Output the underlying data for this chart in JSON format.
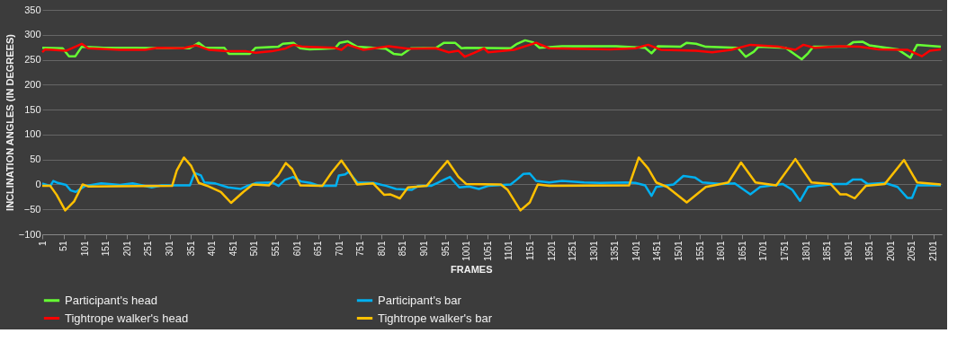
{
  "chart_data": {
    "type": "line",
    "xlabel": "FRAMES",
    "ylabel": "INCLINATION ANGLES (IN DEGREES)",
    "xlim": [
      1,
      2121
    ],
    "xticks": [
      1,
      51,
      101,
      151,
      201,
      251,
      301,
      351,
      401,
      451,
      501,
      551,
      601,
      651,
      701,
      751,
      801,
      851,
      901,
      951,
      1001,
      1051,
      1101,
      1151,
      1201,
      1251,
      1301,
      1351,
      1401,
      1451,
      1501,
      1551,
      1601,
      1651,
      1701,
      1751,
      1801,
      1851,
      1901,
      1951,
      2001,
      2051,
      2101
    ],
    "ylim": [
      -100,
      350
    ],
    "yticks": [
      -100,
      -50,
      0,
      50,
      100,
      150,
      200,
      250,
      300,
      350
    ],
    "grid": "y",
    "legend": "bottom",
    "series": [
      {
        "name": "Participant's head",
        "color": "#66ff33",
        "x": [
          1,
          49,
          64,
          79,
          94,
          146,
          221,
          288,
          348,
          370,
          385,
          430,
          441,
          490,
          504,
          557,
          568,
          593,
          609,
          631,
          691,
          702,
          721,
          743,
          811,
          829,
          848,
          870,
          929,
          948,
          974,
          989,
          1000,
          1105,
          1120,
          1139,
          1158,
          1173,
          1226,
          1354,
          1422,
          1437,
          1452,
          1505,
          1520,
          1542,
          1565,
          1640,
          1659,
          1678,
          1689,
          1753,
          1776,
          1791,
          1806,
          1818,
          1897,
          1912,
          1935,
          1950,
          2017,
          2047,
          2063,
          2119
        ],
        "values": [
          274,
          273,
          257,
          257,
          276,
          274,
          274,
          273,
          273,
          284,
          274,
          274,
          262,
          262,
          274,
          276,
          282,
          284,
          273,
          271,
          273,
          284,
          287,
          276,
          272,
          262,
          260,
          273,
          274,
          284,
          284,
          273,
          274,
          273,
          282,
          289,
          285,
          274,
          277,
          277,
          274,
          263,
          277,
          276,
          284,
          282,
          276,
          274,
          256,
          266,
          276,
          274,
          260,
          251,
          263,
          276,
          276,
          285,
          286,
          279,
          271,
          254,
          280,
          276
        ]
      },
      {
        "name": "Participant's bar",
        "color": "#00b0f0",
        "x": [
          1,
          20,
          27,
          38,
          57,
          68,
          80,
          102,
          140,
          184,
          214,
          259,
          282,
          349,
          360,
          375,
          383,
          409,
          439,
          469,
          484,
          506,
          543,
          558,
          573,
          592,
          611,
          633,
          655,
          693,
          700,
          715,
          723,
          744,
          782,
          812,
          835,
          872,
          887,
          917,
          932,
          947,
          962,
          984,
          1007,
          1030,
          1052,
          1105,
          1120,
          1135,
          1150,
          1165,
          1196,
          1226,
          1278,
          1316,
          1376,
          1399,
          1422,
          1437,
          1448,
          1489,
          1512,
          1539,
          1557,
          1603,
          1633,
          1655,
          1670,
          1693,
          1746,
          1769,
          1787,
          1806,
          1867,
          1897,
          1912,
          1931,
          1946,
          1987,
          2017,
          2040,
          2051,
          2063,
          2119
        ],
        "values": [
          2,
          -3,
          7,
          3,
          -1,
          -12,
          -15,
          -3,
          2,
          -1,
          2,
          -6,
          -2,
          -2,
          23,
          18,
          4,
          2,
          -6,
          -9,
          -3,
          3,
          4,
          -3,
          9,
          15,
          6,
          3,
          -3,
          -3,
          18,
          20,
          25,
          4,
          3,
          -3,
          -9,
          -11,
          -3,
          -3,
          3,
          9,
          15,
          -6,
          -4,
          -9,
          -3,
          0,
          10,
          21,
          22,
          7,
          4,
          7,
          4,
          3,
          4,
          3,
          -2,
          -23,
          -5,
          0,
          17,
          14,
          4,
          1,
          2,
          -11,
          -20,
          -5,
          1,
          -11,
          -33,
          -5,
          1,
          1,
          10,
          10,
          1,
          3,
          -5,
          -27,
          -27,
          -2,
          -2
        ]
      },
      {
        "name": "Tightrope walker's head",
        "color": "#ff0000",
        "x": [
          1,
          8,
          57,
          94,
          109,
          184,
          243,
          273,
          333,
          363,
          393,
          437,
          482,
          504,
          542,
          572,
          593,
          616,
          691,
          706,
          721,
          758,
          818,
          863,
          929,
          959,
          982,
          997,
          1019,
          1042,
          1052,
          1113,
          1165,
          1196,
          1339,
          1399,
          1429,
          1459,
          1542,
          1580,
          1625,
          1670,
          1738,
          1776,
          1795,
          1821,
          1882,
          1927,
          1972,
          2025,
          2040,
          2074,
          2093,
          2119
        ],
        "values": [
          265,
          271,
          268,
          282,
          273,
          270,
          270,
          274,
          273,
          279,
          270,
          267,
          267,
          264,
          267,
          272,
          280,
          276,
          274,
          270,
          280,
          270,
          277,
          272,
          273,
          265,
          268,
          256,
          264,
          273,
          265,
          270,
          284,
          273,
          271,
          273,
          280,
          270,
          268,
          265,
          270,
          280,
          276,
          270,
          280,
          274,
          277,
          276,
          271,
          270,
          270,
          257,
          268,
          271
        ]
      },
      {
        "name": "Tightrope walker's bar",
        "color": "#ffc000",
        "x": [
          1,
          20,
          35,
          55,
          76,
          96,
          109,
          307,
          318,
          335,
          352,
          370,
          393,
          422,
          446,
          475,
          497,
          535,
          557,
          575,
          590,
          609,
          661,
          684,
          706,
          725,
          743,
          781,
          807,
          822,
          844,
          863,
          907,
          930,
          956,
          982,
          1000,
          1082,
          1098,
          1128,
          1150,
          1169,
          1196,
          1384,
          1407,
          1429,
          1448,
          1474,
          1520,
          1565,
          1595,
          1618,
          1648,
          1682,
          1731,
          1776,
          1814,
          1859,
          1882,
          1897,
          1916,
          1942,
          1987,
          2032,
          2063,
          2119
        ],
        "values": [
          -3,
          -3,
          -21,
          -52,
          -34,
          0,
          -4,
          -3,
          28,
          54,
          37,
          3,
          -4,
          -15,
          -37,
          -15,
          0,
          -2,
          18,
          43,
          31,
          -2,
          -3,
          25,
          48,
          25,
          0,
          2,
          -21,
          -20,
          -28,
          -6,
          -3,
          21,
          47,
          15,
          1,
          0,
          -11,
          -52,
          -36,
          0,
          -3,
          -2,
          54,
          32,
          4,
          -5,
          -36,
          -5,
          0,
          4,
          44,
          4,
          -2,
          51,
          4,
          1,
          -20,
          -20,
          -28,
          -3,
          1,
          49,
          4,
          0
        ]
      }
    ]
  }
}
